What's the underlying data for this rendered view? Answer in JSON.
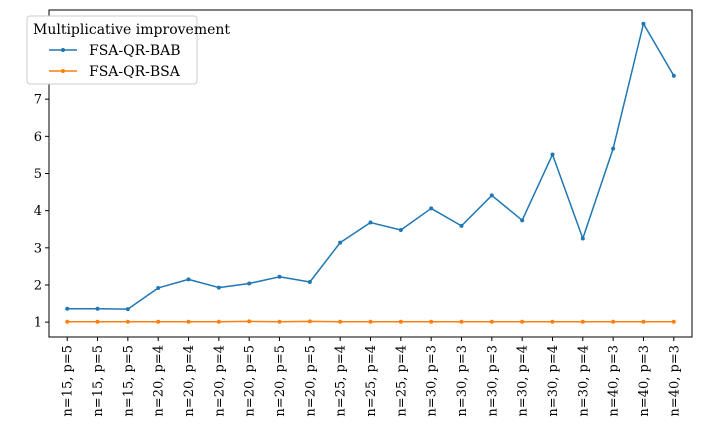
{
  "chart_data": {
    "type": "line",
    "title": "",
    "xlabel": "",
    "ylabel": "",
    "categories": [
      "n=15, p=5",
      "n=15, p=5",
      "n=15, p=5",
      "n=20, p=4",
      "n=20, p=4",
      "n=20, p=4",
      "n=20, p=5",
      "n=20, p=5",
      "n=20, p=5",
      "n=25, p=4",
      "n=25, p=4",
      "n=25, p=4",
      "n=30, p=3",
      "n=30, p=3",
      "n=30, p=3",
      "n=30, p=4",
      "n=30, p=4",
      "n=30, p=4",
      "n=40, p=3",
      "n=40, p=3",
      "n=40, p=3"
    ],
    "ylim": [
      0.6,
      9.4
    ],
    "yticks": [
      1,
      2,
      3,
      4,
      5,
      6,
      7,
      8,
      9
    ],
    "grid": false,
    "legend": {
      "title": "Multiplicative improvement",
      "placement": "top-left"
    },
    "series": [
      {
        "name": "FSA-QR-BAB",
        "color": "#1f77b4",
        "marker": "circle",
        "values": [
          1.36,
          1.36,
          1.35,
          1.92,
          2.15,
          1.93,
          2.04,
          2.22,
          2.08,
          3.14,
          3.68,
          3.48,
          4.06,
          3.59,
          4.41,
          3.74,
          5.51,
          3.25,
          5.67,
          9.03,
          7.63
        ]
      },
      {
        "name": "FSA-QR-BSA",
        "color": "#ff7f0e",
        "marker": "circle",
        "values": [
          1.01,
          1.01,
          1.01,
          1.01,
          1.01,
          1.01,
          1.02,
          1.01,
          1.02,
          1.01,
          1.01,
          1.01,
          1.01,
          1.01,
          1.01,
          1.01,
          1.01,
          1.01,
          1.01,
          1.01,
          1.01
        ]
      }
    ]
  }
}
